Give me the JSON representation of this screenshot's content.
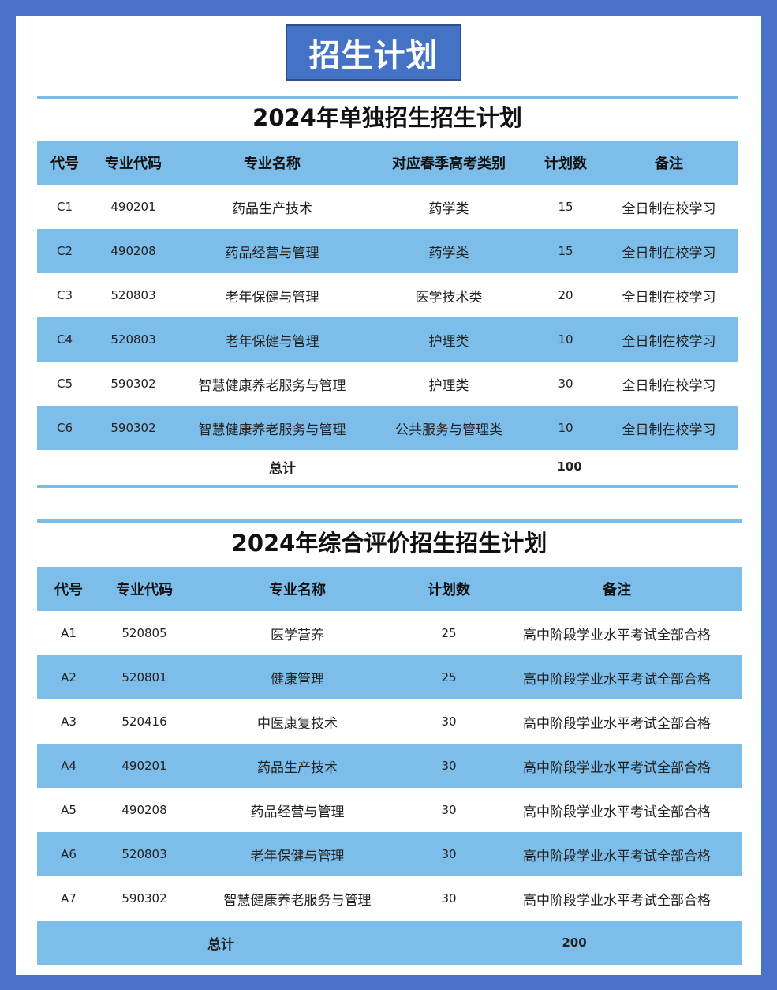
{
  "banner": "招生计划",
  "table1": {
    "title": "2024年单独招生招生计划",
    "headers": [
      "代号",
      "专业代码",
      "专业名称",
      "对应春季高考类别",
      "计划数",
      "备注"
    ],
    "rows": [
      [
        "C1",
        "490201",
        "药品生产技术",
        "药学类",
        "15",
        "全日制在校学习"
      ],
      [
        "C2",
        "490208",
        "药品经营与管理",
        "药学类",
        "15",
        "全日制在校学习"
      ],
      [
        "C3",
        "520803",
        "老年保健与管理",
        "医学技术类",
        "20",
        "全日制在校学习"
      ],
      [
        "C4",
        "520803",
        "老年保健与管理",
        "护理类",
        "10",
        "全日制在校学习"
      ],
      [
        "C5",
        "590302",
        "智慧健康养老服务与管理",
        "护理类",
        "30",
        "全日制在校学习"
      ],
      [
        "C6",
        "590302",
        "智慧健康养老服务与管理",
        "公共服务与管理类",
        "10",
        "全日制在校学习"
      ]
    ],
    "total_label": "总计",
    "total_value": "100"
  },
  "table2": {
    "title": "2024年综合评价招生招生计划",
    "headers": [
      "代号",
      "专业代码",
      "专业名称",
      "计划数",
      "备注"
    ],
    "rows": [
      [
        "A1",
        "520805",
        "医学营养",
        "25",
        "高中阶段学业水平考试全部合格"
      ],
      [
        "A2",
        "520801",
        "健康管理",
        "25",
        "高中阶段学业水平考试全部合格"
      ],
      [
        "A3",
        "520416",
        "中医康复技术",
        "30",
        "高中阶段学业水平考试全部合格"
      ],
      [
        "A4",
        "490201",
        "药品生产技术",
        "30",
        "高中阶段学业水平考试全部合格"
      ],
      [
        "A5",
        "490208",
        "药品经营与管理",
        "30",
        "高中阶段学业水平考试全部合格"
      ],
      [
        "A6",
        "520803",
        "老年保健与管理",
        "30",
        "高中阶段学业水平考试全部合格"
      ],
      [
        "A7",
        "590302",
        "智慧健康养老服务与管理",
        "30",
        "高中阶段学业水平考试全部合格"
      ]
    ],
    "total_label": "总计",
    "total_value": "200"
  }
}
